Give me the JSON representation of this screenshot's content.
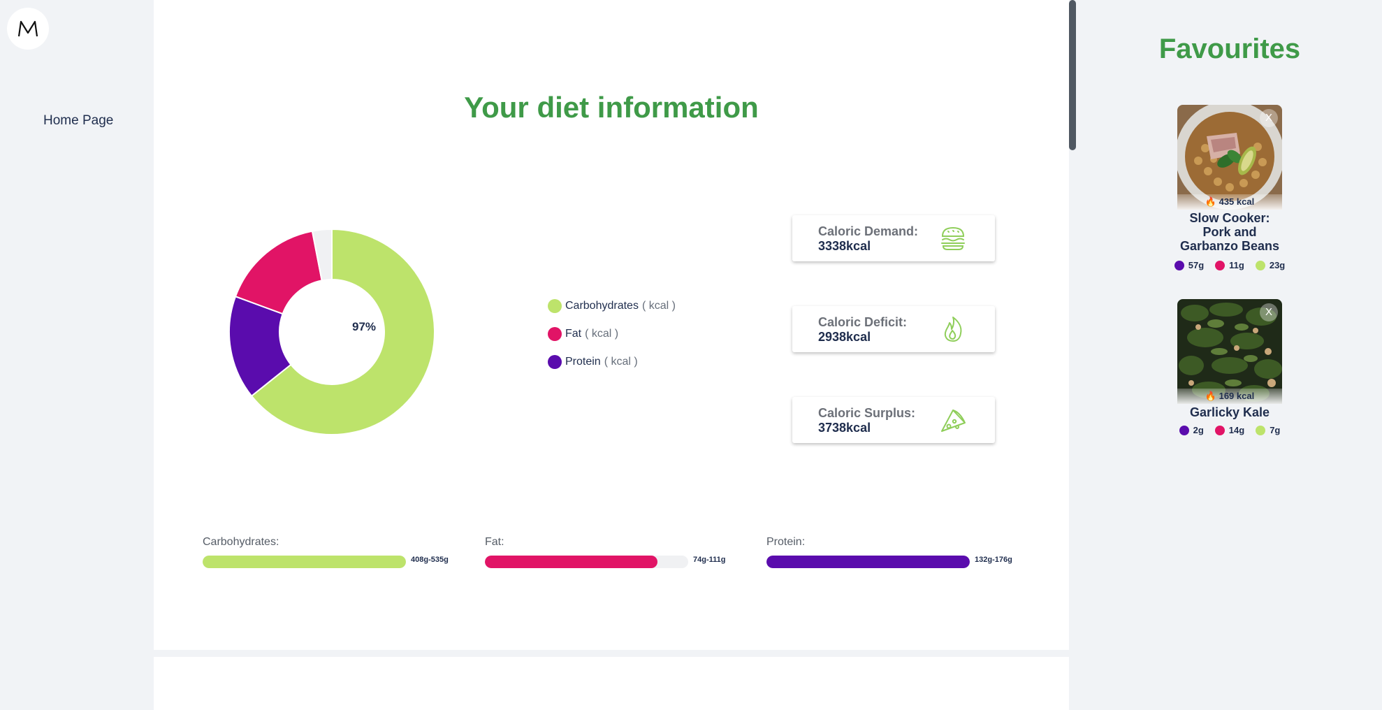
{
  "nav": {
    "home_label": "Home Page"
  },
  "main": {
    "title": "Your diet information",
    "donut": {
      "center_label": "97%"
    },
    "legend": [
      {
        "name": "Carbohydrates",
        "unit": "( kcal )",
        "color": "#bde36b"
      },
      {
        "name": "Fat",
        "unit": "( kcal )",
        "color": "#e11466"
      },
      {
        "name": "Protein",
        "unit": "( kcal )",
        "color": "#5a0cad"
      }
    ],
    "calories": [
      {
        "label": "Caloric Demand:",
        "value": "3338kcal",
        "icon": "burger-icon"
      },
      {
        "label": "Caloric Deficit:",
        "value": "2938kcal",
        "icon": "flame-icon"
      },
      {
        "label": "Caloric Surplus:",
        "value": "3738kcal",
        "icon": "pizza-icon"
      }
    ],
    "macros": [
      {
        "label": "Carbohydrates:",
        "range": "408g-535g",
        "fill": 1.0,
        "color": "#bde36b"
      },
      {
        "label": "Fat:",
        "range": "74g-111g",
        "fill": 0.85,
        "color": "#e11466"
      },
      {
        "label": "Protein:",
        "range": "132g-176g",
        "fill": 1.0,
        "color": "#5a0cad"
      }
    ]
  },
  "chart_data": {
    "type": "pie",
    "categories": [
      "Carbohydrates",
      "Protein",
      "Fat",
      "Remaining"
    ],
    "values": [
      63,
      16,
      16,
      3
    ],
    "colors": [
      "#bde36b",
      "#5a0cad",
      "#e11466",
      "#f0f1f3"
    ]
  },
  "favourites": {
    "title": "Favourites",
    "items": [
      {
        "name": "Slow Cooker: Pork and Garbanzo Beans",
        "kcal": "435 kcal",
        "protein": "57g",
        "fat": "11g",
        "carbs": "23g",
        "close": "X"
      },
      {
        "name": "Garlicky Kale",
        "kcal": "169 kcal",
        "protein": "2g",
        "fat": "14g",
        "carbs": "7g",
        "close": "X"
      }
    ]
  }
}
